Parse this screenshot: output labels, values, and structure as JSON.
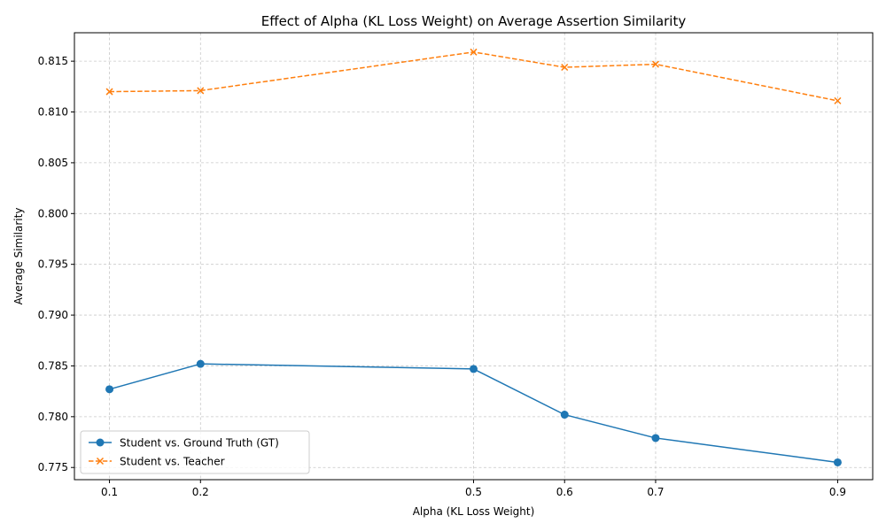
{
  "chart_data": {
    "type": "line",
    "title": "Effect of Alpha (KL Loss Weight) on Average Assertion Similarity",
    "xlabel": "Alpha (KL Loss Weight)",
    "ylabel": "Average Similarity",
    "x": [
      0.1,
      0.2,
      0.5,
      0.6,
      0.7,
      0.9
    ],
    "x_tick_labels": [
      "0.1",
      "0.2",
      "0.5",
      "0.6",
      "0.7",
      "0.9"
    ],
    "xlim": [
      0.0615,
      0.9385
    ],
    "ylim": [
      0.7738,
      0.8178
    ],
    "y_ticks": [
      0.775,
      0.78,
      0.785,
      0.79,
      0.795,
      0.8,
      0.805,
      0.81,
      0.815
    ],
    "y_tick_labels": [
      "0.775",
      "0.780",
      "0.785",
      "0.790",
      "0.795",
      "0.800",
      "0.805",
      "0.810",
      "0.815"
    ],
    "grid": true,
    "legend_position": "lower-left",
    "series": [
      {
        "name": "Student vs. Ground Truth (GT)",
        "values": [
          0.7827,
          0.7852,
          0.7847,
          0.7802,
          0.7779,
          0.7755
        ],
        "color": "#1f77b4",
        "marker": "circle",
        "line_style": "solid"
      },
      {
        "name": "Student vs. Teacher",
        "values": [
          0.812,
          0.8121,
          0.8159,
          0.8144,
          0.8147,
          0.8111
        ],
        "color": "#ff7f0e",
        "marker": "x",
        "line_style": "dashed"
      }
    ]
  }
}
